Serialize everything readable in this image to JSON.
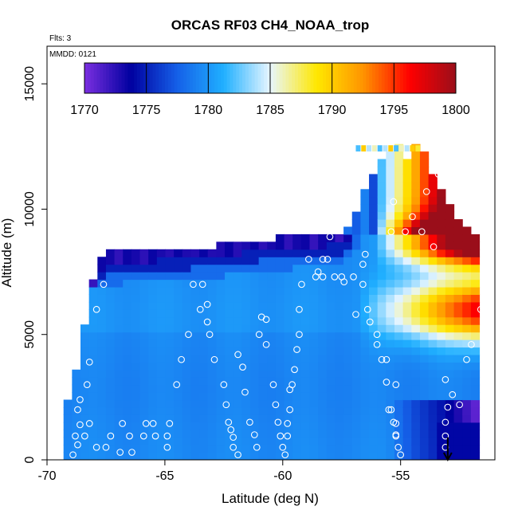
{
  "chart_data": {
    "type": "heatmap",
    "title": "ORCAS RF03 CH4_NOAA_trop",
    "annotations": [
      "Flts: 3",
      "MMDD: 0121"
    ],
    "xlabel": "Latitude (deg N)",
    "ylabel": "Altitude (m)",
    "xlim": [
      -70,
      -51
    ],
    "ylim": [
      0,
      16500
    ],
    "x_ticks": [
      -70,
      -65,
      -60,
      -55
    ],
    "x_tick_labels": [
      "-70",
      "-65",
      "-60",
      "-55"
    ],
    "y_ticks": [
      0,
      5000,
      10000,
      15000
    ],
    "y_tick_labels": [
      "0",
      "5000",
      "10000",
      "15000"
    ],
    "colorbar": {
      "min": 1770,
      "max": 1800,
      "ticks": [
        1770,
        1775,
        1780,
        1785,
        1790,
        1795,
        1800
      ],
      "tick_labels": [
        "1770",
        "1775",
        "1780",
        "1785",
        "1790",
        "1795",
        "1800"
      ],
      "colors": [
        "#7b2fe0",
        "#0000a0",
        "#1560e8",
        "#20b0ff",
        "#e8f6ff",
        "#ffe800",
        "#ff9400",
        "#ff0000",
        "#9a0e1a"
      ]
    },
    "arrow_marker": {
      "latitude": -53,
      "direction": "down"
    },
    "observations": [
      {
        "lat": -68.9,
        "alt": 200
      },
      {
        "lat": -68.7,
        "alt": 600
      },
      {
        "lat": -68.8,
        "alt": 950
      },
      {
        "lat": -68.6,
        "alt": 1400
      },
      {
        "lat": -68.7,
        "alt": 2000
      },
      {
        "lat": -68.6,
        "alt": 2400
      },
      {
        "lat": -68.3,
        "alt": 3000
      },
      {
        "lat": -68.2,
        "alt": 3900
      },
      {
        "lat": -67.9,
        "alt": 6000
      },
      {
        "lat": -67.6,
        "alt": 7000
      },
      {
        "lat": -68.4,
        "alt": 950
      },
      {
        "lat": -68.2,
        "alt": 1450
      },
      {
        "lat": -67.9,
        "alt": 500
      },
      {
        "lat": -67.5,
        "alt": 500
      },
      {
        "lat": -67.3,
        "alt": 950
      },
      {
        "lat": -66.8,
        "alt": 1450
      },
      {
        "lat": -66.9,
        "alt": 300
      },
      {
        "lat": -66.5,
        "alt": 950
      },
      {
        "lat": -66.4,
        "alt": 300
      },
      {
        "lat": -65.9,
        "alt": 950
      },
      {
        "lat": -65.8,
        "alt": 1450
      },
      {
        "lat": -65.5,
        "alt": 1450
      },
      {
        "lat": -65.4,
        "alt": 950
      },
      {
        "lat": -64.9,
        "alt": 500
      },
      {
        "lat": -64.9,
        "alt": 950
      },
      {
        "lat": -64.8,
        "alt": 1450
      },
      {
        "lat": -64.5,
        "alt": 3000
      },
      {
        "lat": -64.3,
        "alt": 4000
      },
      {
        "lat": -64.0,
        "alt": 5000
      },
      {
        "lat": -63.5,
        "alt": 6000
      },
      {
        "lat": -63.1,
        "alt": 5000
      },
      {
        "lat": -62.9,
        "alt": 4000
      },
      {
        "lat": -63.8,
        "alt": 7000
      },
      {
        "lat": -63.4,
        "alt": 7000
      },
      {
        "lat": -63.2,
        "alt": 6200
      },
      {
        "lat": -63.2,
        "alt": 5500
      },
      {
        "lat": -62.5,
        "alt": 3000
      },
      {
        "lat": -62.4,
        "alt": 2200
      },
      {
        "lat": -62.3,
        "alt": 1500
      },
      {
        "lat": -62.2,
        "alt": 1200
      },
      {
        "lat": -62.1,
        "alt": 900
      },
      {
        "lat": -62.1,
        "alt": 500
      },
      {
        "lat": -61.9,
        "alt": 200
      },
      {
        "lat": -61.9,
        "alt": 4200
      },
      {
        "lat": -61.7,
        "alt": 3700
      },
      {
        "lat": -61.6,
        "alt": 2700
      },
      {
        "lat": -61.4,
        "alt": 1500
      },
      {
        "lat": -61.2,
        "alt": 1000
      },
      {
        "lat": -61.1,
        "alt": 500
      },
      {
        "lat": -61.0,
        "alt": 5000
      },
      {
        "lat": -60.9,
        "alt": 5700
      },
      {
        "lat": -60.7,
        "alt": 4600
      },
      {
        "lat": -60.7,
        "alt": 5600
      },
      {
        "lat": -60.4,
        "alt": 3000
      },
      {
        "lat": -60.3,
        "alt": 2200
      },
      {
        "lat": -60.2,
        "alt": 1500
      },
      {
        "lat": -60.1,
        "alt": 950
      },
      {
        "lat": -60.0,
        "alt": 500
      },
      {
        "lat": -59.9,
        "alt": 200
      },
      {
        "lat": -59.8,
        "alt": 1450
      },
      {
        "lat": -59.8,
        "alt": 950
      },
      {
        "lat": -59.7,
        "alt": 2000
      },
      {
        "lat": -59.7,
        "alt": 2800
      },
      {
        "lat": -59.6,
        "alt": 3000
      },
      {
        "lat": -59.5,
        "alt": 3600
      },
      {
        "lat": -59.4,
        "alt": 4400
      },
      {
        "lat": -59.3,
        "alt": 5000
      },
      {
        "lat": -59.3,
        "alt": 6000
      },
      {
        "lat": -59.2,
        "alt": 7000
      },
      {
        "lat": -58.9,
        "alt": 8000
      },
      {
        "lat": -58.6,
        "alt": 7300
      },
      {
        "lat": -58.5,
        "alt": 7500
      },
      {
        "lat": -58.3,
        "alt": 8000
      },
      {
        "lat": -58.3,
        "alt": 7300
      },
      {
        "lat": -58.1,
        "alt": 8000
      },
      {
        "lat": -58.0,
        "alt": 8900
      },
      {
        "lat": -57.8,
        "alt": 7300
      },
      {
        "lat": -57.5,
        "alt": 7300
      },
      {
        "lat": -57.0,
        "alt": 7300
      },
      {
        "lat": -56.6,
        "alt": 7800
      },
      {
        "lat": -56.5,
        "alt": 8200
      },
      {
        "lat": -56.6,
        "alt": 7000
      },
      {
        "lat": -56.4,
        "alt": 6000
      },
      {
        "lat": -56.3,
        "alt": 5500
      },
      {
        "lat": -56.0,
        "alt": 5000
      },
      {
        "lat": -56.0,
        "alt": 4600
      },
      {
        "lat": -55.8,
        "alt": 4000
      },
      {
        "lat": -55.6,
        "alt": 4000
      },
      {
        "lat": -55.6,
        "alt": 3100
      },
      {
        "lat": -55.5,
        "alt": 2000
      },
      {
        "lat": -55.3,
        "alt": 1500
      },
      {
        "lat": -55.2,
        "alt": 1000
      },
      {
        "lat": -55.1,
        "alt": 500
      },
      {
        "lat": -55.0,
        "alt": 200
      },
      {
        "lat": -55.2,
        "alt": 1450
      },
      {
        "lat": -55.2,
        "alt": 950
      },
      {
        "lat": -55.4,
        "alt": 2000
      },
      {
        "lat": -55.2,
        "alt": 3000
      },
      {
        "lat": -55.4,
        "alt": 9100
      },
      {
        "lat": -55.3,
        "alt": 10300
      },
      {
        "lat": -54.8,
        "alt": 9100
      },
      {
        "lat": -54.5,
        "alt": 9700
      },
      {
        "lat": -54.1,
        "alt": 9100
      },
      {
        "lat": -53.6,
        "alt": 8500
      },
      {
        "lat": -53.9,
        "alt": 10700
      },
      {
        "lat": -53.1,
        "alt": 3200
      },
      {
        "lat": -53.0,
        "alt": 2100
      },
      {
        "lat": -53.1,
        "alt": 1500
      },
      {
        "lat": -53.1,
        "alt": 950
      },
      {
        "lat": -53.1,
        "alt": 500
      },
      {
        "lat": -52.8,
        "alt": 2600
      },
      {
        "lat": -52.5,
        "alt": 2200
      },
      {
        "lat": -52.2,
        "alt": 4000
      },
      {
        "lat": -52.0,
        "alt": 4600
      },
      {
        "lat": -51.6,
        "alt": 6000
      },
      {
        "lat": -57.4,
        "alt": 7100
      },
      {
        "lat": -56.9,
        "alt": 5800
      },
      {
        "lat": -53.4,
        "alt": 11400
      }
    ]
  }
}
